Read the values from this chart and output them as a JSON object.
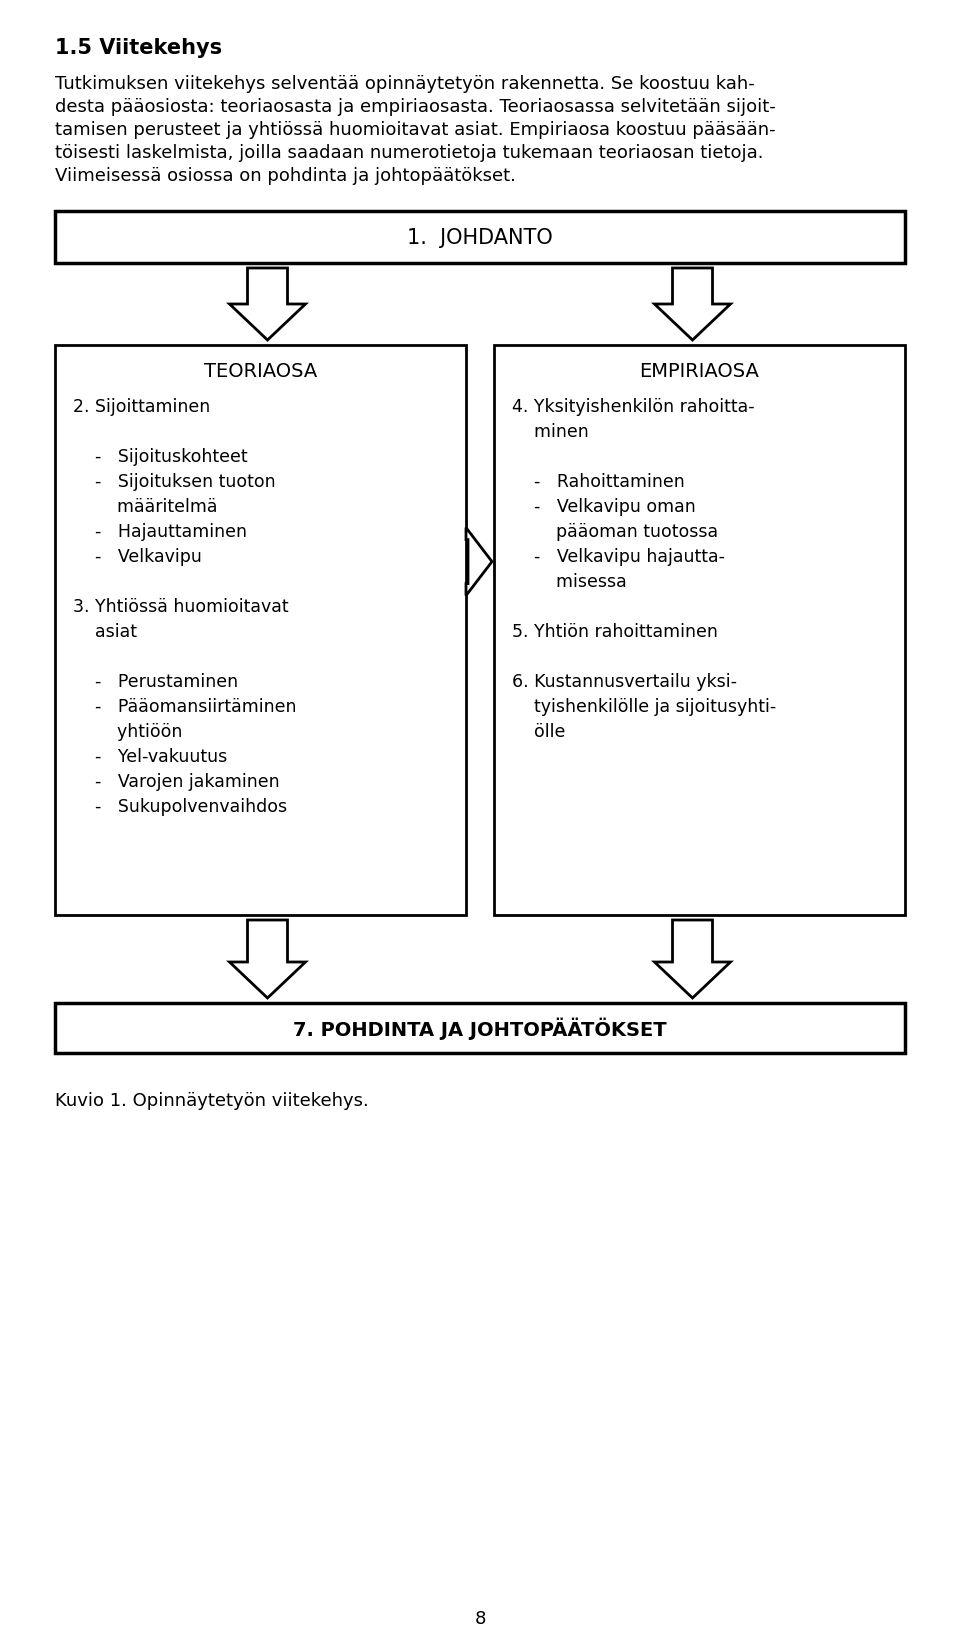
{
  "bg_color": "#ffffff",
  "text_color": "#000000",
  "title": "1.5 Viitekehys",
  "para_lines": [
    "Tutkimuksen viitekehys selventää opinnäytetyön rakennetta. Se koostuu kah-",
    "desta pääosiosta: teoriaosasta ja empiriaosasta. Teoriaosassa selvitetään sijoit-",
    "tamisen perusteet ja yhtiössä huomioitavat asiat. Empiriaosa koostuu pääsään-",
    "töisesti laskelmista, joilla saadaan numerotietoja tukemaan teoriaosan tietoja.",
    "Viimeisessä osiossa on pohdinta ja johtopäätökset."
  ],
  "johdanto_label": "1.  JOHDANTO",
  "teoriaosa_label": "TEORIAOSA",
  "empiriaosa_label": "EMPIRIAOSA",
  "teoriaosa_content": "2. Sijoittaminen\n\n    -   Sijoituskohteet\n    -   Sijoituksen tuoton\n        määritelmä\n    -   Hajauttaminen\n    -   Velkavipu\n\n3. Yhtiössä huomioitavat\n    asiat\n\n    -   Perustaminen\n    -   Pääomansiirtäminen\n        yhtiöön\n    -   Yel-vakuutus\n    -   Varojen jakaminen\n    -   Sukupolvenvaihdos",
  "empiriaosa_content": "4. Yksityishenkilön rahoitta-\n    minen\n\n    -   Rahoittaminen\n    -   Velkavipu oman\n        pääoman tuotossa\n    -   Velkavipu hajautta-\n        misessa\n\n5. Yhtiön rahoittaminen\n\n6. Kustannusvertailu yksi-\n    tyishenkilölle ja sijoitusyhti-\n    ölle",
  "bottom_label": "7. POHDINTA JA JOHTOPÄÄTÖKSET",
  "caption": "Kuvio 1. Opinnäytetyön viitekehys.",
  "page_number": "8"
}
